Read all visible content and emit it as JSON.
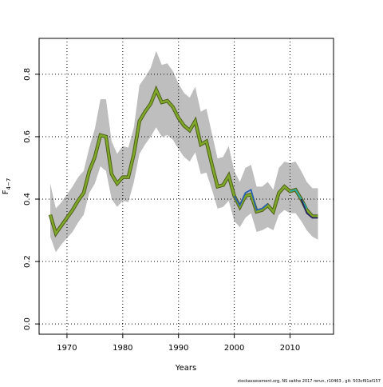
{
  "chart_data": {
    "type": "line",
    "xlabel": "Years",
    "ylabel": {
      "text": "F",
      "subscript": "4−7"
    },
    "footnote": "stockassessment.org, NS saithe 2017 rerun, r10463 , git: 503cf91af157",
    "x": [
      1967,
      1968,
      1969,
      1970,
      1971,
      1972,
      1973,
      1974,
      1975,
      1976,
      1977,
      1978,
      1979,
      1980,
      1981,
      1982,
      1983,
      1984,
      1985,
      1986,
      1987,
      1988,
      1989,
      1990,
      1991,
      1992,
      1993,
      1994,
      1995,
      1996,
      1997,
      1998,
      1999,
      2000,
      2001,
      2002,
      2003,
      2004,
      2005,
      2006,
      2007,
      2008,
      2009,
      2010,
      2011,
      2012,
      2013,
      2014,
      2015
    ],
    "band": {
      "color": "#bebebe",
      "upper": [
        0.45,
        0.37,
        0.39,
        0.415,
        0.44,
        0.47,
        0.49,
        0.565,
        0.625,
        0.72,
        0.72,
        0.585,
        0.545,
        0.57,
        0.565,
        0.63,
        0.765,
        0.79,
        0.82,
        0.875,
        0.83,
        0.835,
        0.81,
        0.77,
        0.74,
        0.725,
        0.76,
        0.68,
        0.69,
        0.61,
        0.53,
        0.535,
        0.57,
        0.49,
        0.455,
        0.5,
        0.51,
        0.44,
        0.44,
        0.455,
        0.43,
        0.5,
        0.52,
        0.515,
        0.52,
        0.49,
        0.455,
        0.435,
        0.435
      ],
      "lower": [
        0.28,
        0.23,
        0.255,
        0.275,
        0.295,
        0.325,
        0.35,
        0.42,
        0.45,
        0.505,
        0.49,
        0.4,
        0.375,
        0.395,
        0.39,
        0.455,
        0.545,
        0.575,
        0.6,
        0.63,
        0.6,
        0.605,
        0.59,
        0.56,
        0.535,
        0.52,
        0.55,
        0.48,
        0.485,
        0.43,
        0.37,
        0.375,
        0.395,
        0.33,
        0.31,
        0.34,
        0.355,
        0.295,
        0.3,
        0.31,
        0.3,
        0.35,
        0.365,
        0.355,
        0.355,
        0.33,
        0.3,
        0.28,
        0.27
      ]
    },
    "series": [
      {
        "color": "#7fa82a",
        "values": [
          0.35,
          0.29,
          0.315,
          0.34,
          0.365,
          0.395,
          0.42,
          0.49,
          0.535,
          0.605,
          0.6,
          0.48,
          0.45,
          0.47,
          0.47,
          0.545,
          0.65,
          0.68,
          0.705,
          0.75,
          0.71,
          0.715,
          0.695,
          0.66,
          0.635,
          0.62,
          0.65,
          0.575,
          0.585,
          0.51,
          0.44,
          0.445,
          0.475,
          0.41,
          0.375,
          0.41,
          0.415,
          0.36,
          0.365,
          0.38,
          0.36,
          0.42,
          0.44,
          0.425,
          0.43,
          0.4,
          0.365,
          0.345,
          0.345
        ]
      },
      {
        "color": "#2a5fb0",
        "x": [
          2000,
          2001,
          2002,
          2003,
          2004,
          2005,
          2006
        ],
        "values": [
          0.41,
          0.38,
          0.42,
          0.43,
          0.365,
          0.37,
          0.385
        ]
      },
      {
        "color": "#2aa5a5",
        "x": [
          2010,
          2011,
          2012,
          2013
        ],
        "values": [
          0.425,
          0.43,
          0.4,
          0.37
        ]
      },
      {
        "color": "#27235e",
        "x": [
          2012,
          2013,
          2014,
          2015
        ],
        "values": [
          0.4,
          0.355,
          0.34,
          0.34
        ]
      }
    ],
    "xlim": [
      1965,
      2017.8
    ],
    "xticks": [
      1970,
      1980,
      1990,
      2000,
      2010
    ],
    "ylim": [
      -0.033,
      0.915
    ],
    "yticks": [
      {
        "value": 0,
        "label": "0.0"
      },
      0.2,
      0.4,
      0.6,
      0.8
    ],
    "grid": true
  }
}
